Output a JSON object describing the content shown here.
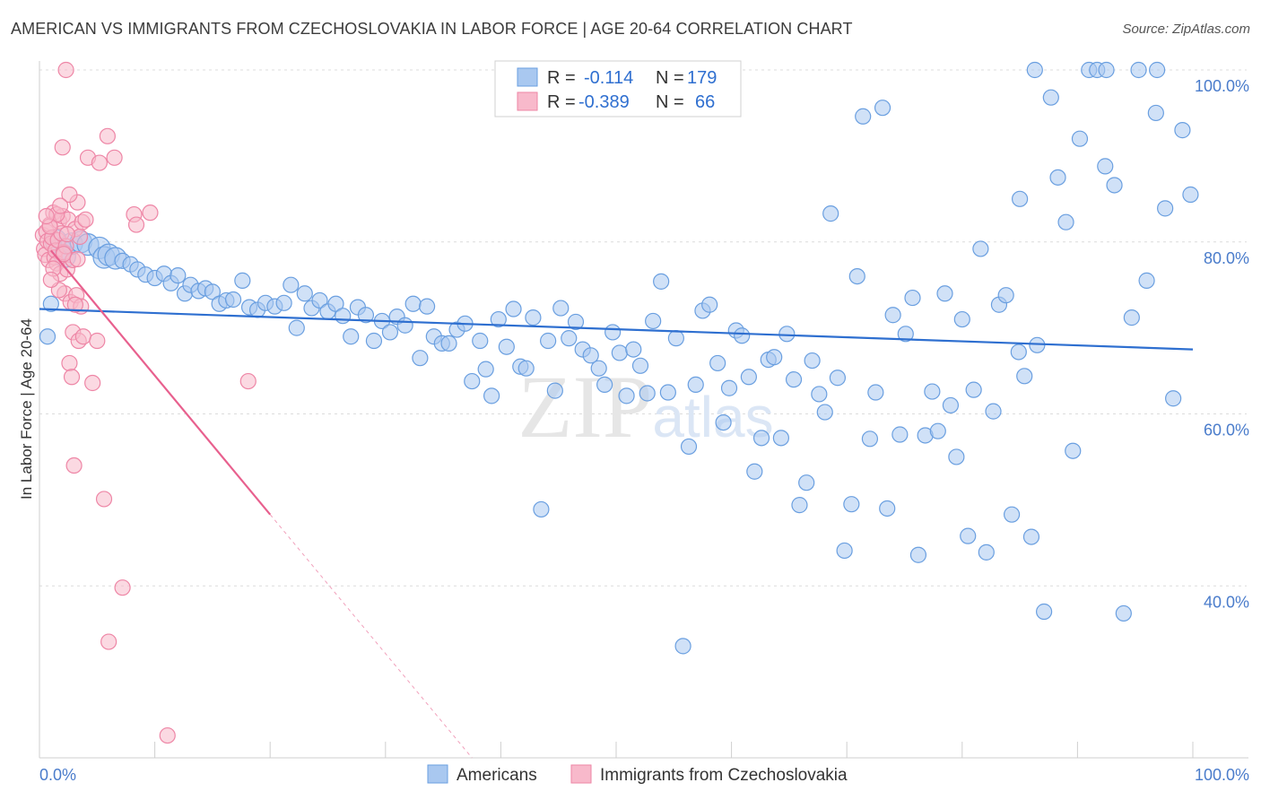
{
  "title": "AMERICAN VS IMMIGRANTS FROM CZECHOSLOVAKIA IN LABOR FORCE | AGE 20-64 CORRELATION CHART",
  "source": "Source: ZipAtlas.com",
  "watermark": "ZIPatlas",
  "colors": {
    "americans_fill": "#a9c8f0",
    "americans_stroke": "#6a9fe0",
    "americans_line": "#2e6fd0",
    "immigrants_fill": "#f8b9cb",
    "immigrants_stroke": "#ee86a6",
    "immigrants_line": "#e8608e",
    "tick_text": "#4a7ccb",
    "grid": "#dcdcdc"
  },
  "legend": {
    "rows": [
      {
        "r_label": "R =",
        "r_value": "-0.114",
        "n_label": "N =",
        "n_value": "179"
      },
      {
        "r_label": "R =",
        "r_value": "-0.389",
        "n_label": "N =",
        "n_value": "66"
      }
    ]
  },
  "chart_data": {
    "type": "scatter",
    "xlabel": "",
    "ylabel": "In Labor Force | Age 20-64",
    "xlim": [
      0,
      100
    ],
    "ylim": [
      20,
      100
    ],
    "x_tick_labels": [
      "0.0%",
      "100.0%"
    ],
    "y_ticks": [
      40,
      60,
      80,
      100
    ],
    "y_tick_labels": [
      "40.0%",
      "60.0%",
      "80.0%",
      "100.0%"
    ],
    "grid": true,
    "legend_placement": "bottom-center",
    "series": [
      {
        "name": "Americans",
        "trend": [
          [
            0,
            72.2
          ],
          [
            100,
            67.5
          ]
        ],
        "points": [
          [
            0.7,
            69
          ],
          [
            1.0,
            72.8
          ],
          [
            1.4,
            80.2
          ],
          [
            1.8,
            79.2
          ],
          [
            2.2,
            78.3
          ],
          [
            2.8,
            79.8
          ],
          [
            3.6,
            80.0
          ],
          [
            4.2,
            79.7
          ],
          [
            5.2,
            79.3
          ],
          [
            5.6,
            78.2
          ],
          [
            6.0,
            78.5
          ],
          [
            6.6,
            78.1
          ],
          [
            7.2,
            77.8
          ],
          [
            7.9,
            77.4
          ],
          [
            8.5,
            76.8
          ],
          [
            9.2,
            76.2
          ],
          [
            10.0,
            75.8
          ],
          [
            10.8,
            76.3
          ],
          [
            11.4,
            75.2
          ],
          [
            12.0,
            76.1
          ],
          [
            12.6,
            74.0
          ],
          [
            13.1,
            75.0
          ],
          [
            13.8,
            74.3
          ],
          [
            14.4,
            74.6
          ],
          [
            15.0,
            74.2
          ],
          [
            15.6,
            72.8
          ],
          [
            16.2,
            73.2
          ],
          [
            16.8,
            73.3
          ],
          [
            17.6,
            75.5
          ],
          [
            18.2,
            72.4
          ],
          [
            18.9,
            72.1
          ],
          [
            19.6,
            72.9
          ],
          [
            20.4,
            72.5
          ],
          [
            21.2,
            72.9
          ],
          [
            21.8,
            75.0
          ],
          [
            22.3,
            70.0
          ],
          [
            23.0,
            74.0
          ],
          [
            23.6,
            72.3
          ],
          [
            24.3,
            73.2
          ],
          [
            25.0,
            71.9
          ],
          [
            25.7,
            72.8
          ],
          [
            26.3,
            71.4
          ],
          [
            27.0,
            69.0
          ],
          [
            27.6,
            72.4
          ],
          [
            28.3,
            71.5
          ],
          [
            29.0,
            68.5
          ],
          [
            29.7,
            70.8
          ],
          [
            30.4,
            69.5
          ],
          [
            31.0,
            71.3
          ],
          [
            31.7,
            70.3
          ],
          [
            32.4,
            72.8
          ],
          [
            33.0,
            66.5
          ],
          [
            33.6,
            72.5
          ],
          [
            34.2,
            69.0
          ],
          [
            34.9,
            68.2
          ],
          [
            35.5,
            68.2
          ],
          [
            36.2,
            69.8
          ],
          [
            36.9,
            70.5
          ],
          [
            37.5,
            63.8
          ],
          [
            38.2,
            68.5
          ],
          [
            38.7,
            65.2
          ],
          [
            39.2,
            62.1
          ],
          [
            39.8,
            71.0
          ],
          [
            40.5,
            67.8
          ],
          [
            41.1,
            72.2
          ],
          [
            41.7,
            65.5
          ],
          [
            42.2,
            65.3
          ],
          [
            42.8,
            71.2
          ],
          [
            43.5,
            48.9
          ],
          [
            44.1,
            68.5
          ],
          [
            44.7,
            62.7
          ],
          [
            45.2,
            72.3
          ],
          [
            45.9,
            68.8
          ],
          [
            46.5,
            70.7
          ],
          [
            47.1,
            67.5
          ],
          [
            47.8,
            66.8
          ],
          [
            48.5,
            65.3
          ],
          [
            49.0,
            63.4
          ],
          [
            49.7,
            69.5
          ],
          [
            50.3,
            67.1
          ],
          [
            50.9,
            62.1
          ],
          [
            51.5,
            67.5
          ],
          [
            52.1,
            65.6
          ],
          [
            52.7,
            62.4
          ],
          [
            53.2,
            70.8
          ],
          [
            53.9,
            75.4
          ],
          [
            54.5,
            62.5
          ],
          [
            55.2,
            68.8
          ],
          [
            55.8,
            33.0
          ],
          [
            56.3,
            56.2
          ],
          [
            56.9,
            63.4
          ],
          [
            57.5,
            72.0
          ],
          [
            58.1,
            72.7
          ],
          [
            58.8,
            65.9
          ],
          [
            59.3,
            59.0
          ],
          [
            59.8,
            63.0
          ],
          [
            60.4,
            69.7
          ],
          [
            60.9,
            69.1
          ],
          [
            61.5,
            64.3
          ],
          [
            62.0,
            53.3
          ],
          [
            62.6,
            57.2
          ],
          [
            63.2,
            66.3
          ],
          [
            63.7,
            66.6
          ],
          [
            64.3,
            57.2
          ],
          [
            64.8,
            69.3
          ],
          [
            65.4,
            64.0
          ],
          [
            65.9,
            49.4
          ],
          [
            66.5,
            52.0
          ],
          [
            67.0,
            66.2
          ],
          [
            67.6,
            62.3
          ],
          [
            68.1,
            60.2
          ],
          [
            68.6,
            83.3
          ],
          [
            69.2,
            64.2
          ],
          [
            69.8,
            44.1
          ],
          [
            70.4,
            49.5
          ],
          [
            70.9,
            76.0
          ],
          [
            71.4,
            94.6
          ],
          [
            72.0,
            57.1
          ],
          [
            72.5,
            62.5
          ],
          [
            73.1,
            95.6
          ],
          [
            73.5,
            49.0
          ],
          [
            74.0,
            71.5
          ],
          [
            74.6,
            57.6
          ],
          [
            75.1,
            69.3
          ],
          [
            75.7,
            73.5
          ],
          [
            76.2,
            43.6
          ],
          [
            76.8,
            57.5
          ],
          [
            77.4,
            62.6
          ],
          [
            77.9,
            58.0
          ],
          [
            78.5,
            74.0
          ],
          [
            79.0,
            61.0
          ],
          [
            79.5,
            55.0
          ],
          [
            80.0,
            71.0
          ],
          [
            80.5,
            45.8
          ],
          [
            81.0,
            62.8
          ],
          [
            81.6,
            79.2
          ],
          [
            82.1,
            43.9
          ],
          [
            82.7,
            60.3
          ],
          [
            83.2,
            72.7
          ],
          [
            83.8,
            73.8
          ],
          [
            84.3,
            48.3
          ],
          [
            84.9,
            67.2
          ],
          [
            85.4,
            64.4
          ],
          [
            86.0,
            45.7
          ],
          [
            86.5,
            68.0
          ],
          [
            87.1,
            37.0
          ],
          [
            87.7,
            96.8
          ],
          [
            88.3,
            87.5
          ],
          [
            89.0,
            82.3
          ],
          [
            89.6,
            55.7
          ],
          [
            90.2,
            92.0
          ],
          [
            91.0,
            100
          ],
          [
            91.7,
            100
          ],
          [
            92.4,
            88.8
          ],
          [
            93.2,
            86.6
          ],
          [
            94.0,
            36.8
          ],
          [
            94.7,
            71.2
          ],
          [
            95.3,
            100
          ],
          [
            96.0,
            75.5
          ],
          [
            96.8,
            95.0
          ],
          [
            97.6,
            83.9
          ],
          [
            98.3,
            61.8
          ],
          [
            99.1,
            93.0
          ],
          [
            99.8,
            85.5
          ],
          [
            86.3,
            100
          ],
          [
            92.5,
            100
          ],
          [
            96.9,
            100
          ],
          [
            85.0,
            85.0
          ]
        ]
      },
      {
        "name": "Immigrants from Czechoslovakia",
        "trend": [
          [
            1.0,
            79.0
          ],
          [
            20.0,
            48.3
          ]
        ],
        "trend_dashed": [
          [
            20.0,
            48.3
          ],
          [
            37.5,
            20.0
          ]
        ],
        "points": [
          [
            0.3,
            80.8
          ],
          [
            0.4,
            79.2
          ],
          [
            0.5,
            78.5
          ],
          [
            0.6,
            81.2
          ],
          [
            0.7,
            80.1
          ],
          [
            0.8,
            77.9
          ],
          [
            0.9,
            82.0
          ],
          [
            1.0,
            79.8
          ],
          [
            1.1,
            80.5
          ],
          [
            1.2,
            83.4
          ],
          [
            1.3,
            78.2
          ],
          [
            1.4,
            79.0
          ],
          [
            1.5,
            77.5
          ],
          [
            1.6,
            80.2
          ],
          [
            1.7,
            82.4
          ],
          [
            1.8,
            76.3
          ],
          [
            1.9,
            81.0
          ],
          [
            2.0,
            83.0
          ],
          [
            2.1,
            78.8
          ],
          [
            2.2,
            74.0
          ],
          [
            2.3,
            79.5
          ],
          [
            2.4,
            76.8
          ],
          [
            2.5,
            82.6
          ],
          [
            2.6,
            65.9
          ],
          [
            2.7,
            73.0
          ],
          [
            2.8,
            64.3
          ],
          [
            2.9,
            69.5
          ],
          [
            3.0,
            54.0
          ],
          [
            3.1,
            81.5
          ],
          [
            3.2,
            73.8
          ],
          [
            3.3,
            84.6
          ],
          [
            3.4,
            68.5
          ],
          [
            3.5,
            80.6
          ],
          [
            3.6,
            72.5
          ],
          [
            3.7,
            82.3
          ],
          [
            3.8,
            69.0
          ],
          [
            4.0,
            82.6
          ],
          [
            4.2,
            89.8
          ],
          [
            4.6,
            63.6
          ],
          [
            5.0,
            68.5
          ],
          [
            5.2,
            89.2
          ],
          [
            5.6,
            50.1
          ],
          [
            5.9,
            92.3
          ],
          [
            6.0,
            33.5
          ],
          [
            6.5,
            89.8
          ],
          [
            7.2,
            39.8
          ],
          [
            8.2,
            83.2
          ],
          [
            8.4,
            82.0
          ],
          [
            9.6,
            83.4
          ],
          [
            11.1,
            22.6
          ],
          [
            18.1,
            63.8
          ],
          [
            2.0,
            91.0
          ],
          [
            2.3,
            100
          ],
          [
            2.6,
            85.5
          ],
          [
            1.5,
            83.2
          ],
          [
            2.9,
            77.9
          ],
          [
            1.2,
            76.9
          ],
          [
            0.9,
            81.8
          ],
          [
            3.1,
            72.7
          ],
          [
            1.7,
            74.4
          ],
          [
            2.1,
            78.6
          ],
          [
            0.6,
            83.0
          ],
          [
            1.8,
            84.2
          ],
          [
            2.4,
            80.9
          ],
          [
            1.0,
            75.6
          ],
          [
            3.3,
            78.0
          ]
        ]
      }
    ]
  }
}
